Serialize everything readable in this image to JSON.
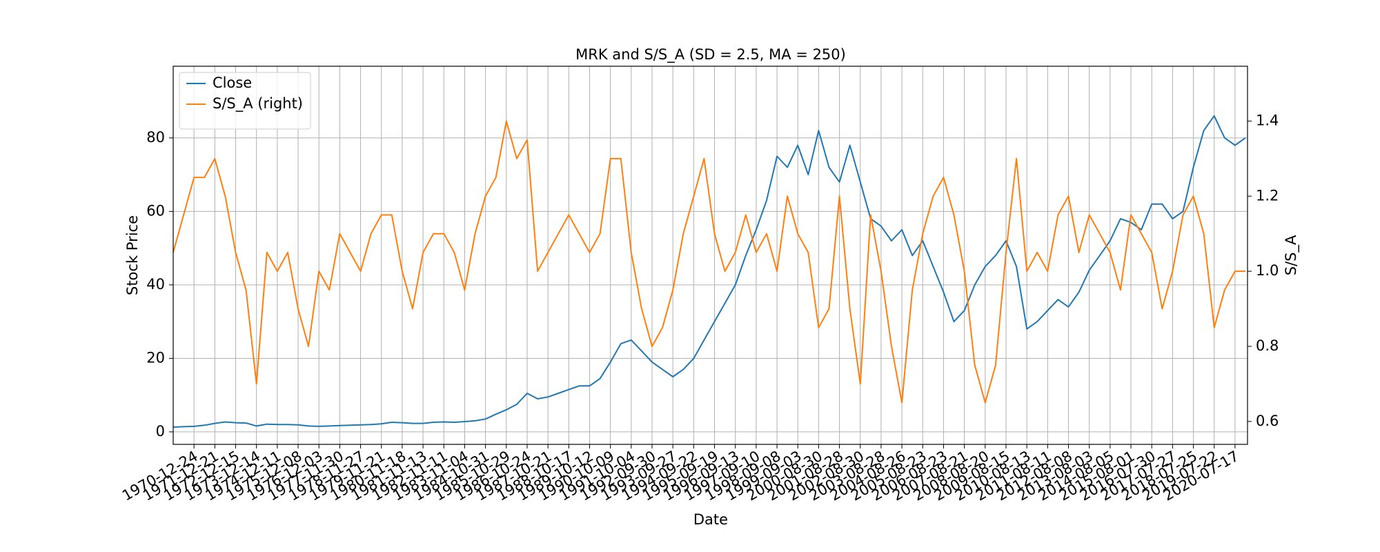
{
  "chart_data": {
    "type": "line",
    "title": "MRK and S/S_A (SD = 2.5, MA = 250)",
    "x_label": "Date",
    "y_label": "Stock Price",
    "y2_label": "S/S_A",
    "grid": true,
    "legend": "upper left",
    "xlim": [
      0,
      12900
    ],
    "ylim": [
      -3.4,
      99.5
    ],
    "y2lim": [
      0.539,
      1.546
    ],
    "yticks": [
      0,
      20,
      40,
      60,
      80
    ],
    "y2ticks": [
      0.6,
      0.8,
      {
        "value": 1.0,
        "label": "1.0"
      },
      1.2,
      1.4
    ],
    "xticks": [
      {
        "value": 250,
        "label": "1970-12-24"
      },
      {
        "value": 500,
        "label": "1971-12-21"
      },
      {
        "value": 750,
        "label": "1972-12-15"
      },
      {
        "value": 1000,
        "label": "1973-12-14"
      },
      {
        "value": 1250,
        "label": "1974-12-11"
      },
      {
        "value": 1500,
        "label": "1975-12-08"
      },
      {
        "value": 1750,
        "label": "1976-12-03"
      },
      {
        "value": 2000,
        "label": "1977-11-30"
      },
      {
        "value": 2250,
        "label": "1978-11-27"
      },
      {
        "value": 2500,
        "label": "1979-11-21"
      },
      {
        "value": 2750,
        "label": "1980-11-18"
      },
      {
        "value": 3000,
        "label": "1981-11-13"
      },
      {
        "value": 3250,
        "label": "1982-11-11"
      },
      {
        "value": 3500,
        "label": "1983-11-04"
      },
      {
        "value": 3750,
        "label": "1984-10-31"
      },
      {
        "value": 4000,
        "label": "1985-10-29"
      },
      {
        "value": 4250,
        "label": "1986-10-24"
      },
      {
        "value": 4500,
        "label": "1987-10-21"
      },
      {
        "value": 4750,
        "label": "1988-10-17"
      },
      {
        "value": 5000,
        "label": "1989-10-12"
      },
      {
        "value": 5250,
        "label": "1990-10-09"
      },
      {
        "value": 5500,
        "label": "1991-10-04"
      },
      {
        "value": 5750,
        "label": "1992-09-30"
      },
      {
        "value": 6000,
        "label": "1993-09-27"
      },
      {
        "value": 6250,
        "label": "1994-09-22"
      },
      {
        "value": 6500,
        "label": "1995-09-19"
      },
      {
        "value": 6750,
        "label": "1996-09-13"
      },
      {
        "value": 7000,
        "label": "1997-09-10"
      },
      {
        "value": 7250,
        "label": "1998-09-08"
      },
      {
        "value": 7500,
        "label": "1999-09-03"
      },
      {
        "value": 7750,
        "label": "2000-08-30"
      },
      {
        "value": 8000,
        "label": "2001-08-28"
      },
      {
        "value": 8250,
        "label": "2002-08-30"
      },
      {
        "value": 8500,
        "label": "2003-08-28"
      },
      {
        "value": 8750,
        "label": "2004-08-26"
      },
      {
        "value": 9000,
        "label": "2005-08-23"
      },
      {
        "value": 9250,
        "label": "2006-08-23"
      },
      {
        "value": 9500,
        "label": "2007-08-21"
      },
      {
        "value": 9750,
        "label": "2008-08-20"
      },
      {
        "value": 10000,
        "label": "2009-08-15"
      },
      {
        "value": 10250,
        "label": "2010-08-13"
      },
      {
        "value": 10500,
        "label": "2011-08-11"
      },
      {
        "value": 10750,
        "label": "2012-08-08"
      },
      {
        "value": 11000,
        "label": "2013-08-03"
      },
      {
        "value": 11250,
        "label": "2014-08-05"
      },
      {
        "value": 11500,
        "label": "2015-08-01"
      },
      {
        "value": 11750,
        "label": "2016-07-30"
      },
      {
        "value": 12000,
        "label": "2017-07-27"
      },
      {
        "value": 12250,
        "label": "2018-07-25"
      },
      {
        "value": 12500,
        "label": "2019-07-22"
      },
      {
        "value": 12750,
        "label": "2020-07-17"
      }
    ],
    "x": [
      0,
      125,
      250,
      375,
      500,
      625,
      750,
      875,
      1000,
      1125,
      1250,
      1375,
      1500,
      1625,
      1750,
      1875,
      2000,
      2125,
      2250,
      2375,
      2500,
      2625,
      2750,
      2875,
      3000,
      3125,
      3250,
      3375,
      3500,
      3625,
      3750,
      3875,
      4000,
      4125,
      4250,
      4375,
      4500,
      4625,
      4750,
      4875,
      5000,
      5125,
      5250,
      5375,
      5500,
      5625,
      5750,
      5875,
      6000,
      6125,
      6250,
      6375,
      6500,
      6625,
      6750,
      6875,
      7000,
      7125,
      7250,
      7375,
      7500,
      7625,
      7750,
      7875,
      8000,
      8125,
      8250,
      8375,
      8500,
      8625,
      8750,
      8875,
      9000,
      9125,
      9250,
      9375,
      9500,
      9625,
      9750,
      9875,
      10000,
      10125,
      10250,
      10375,
      10500,
      10625,
      10750,
      10875,
      11000,
      11125,
      11250,
      11375,
      11500,
      11625,
      11750,
      11875,
      12000,
      12125,
      12250,
      12375,
      12500,
      12625,
      12750,
      12875
    ],
    "series": [
      {
        "name": "Close",
        "color": "#1f77b4",
        "axis": "y",
        "values": [
          1.3,
          1.4,
          1.5,
          1.8,
          2.3,
          2.7,
          2.5,
          2.4,
          1.6,
          2.1,
          2.0,
          2.0,
          1.9,
          1.6,
          1.5,
          1.6,
          1.7,
          1.8,
          1.9,
          2.0,
          2.2,
          2.6,
          2.5,
          2.3,
          2.3,
          2.6,
          2.7,
          2.6,
          2.8,
          3.0,
          3.5,
          4.8,
          6.0,
          7.5,
          10.5,
          9.0,
          9.5,
          10.5,
          11.5,
          12.5,
          12.5,
          14.5,
          19,
          24,
          25,
          22,
          19,
          17,
          15,
          17,
          20,
          25,
          30,
          35,
          40,
          48,
          55,
          63,
          75,
          72,
          78,
          70,
          82,
          72,
          68,
          78,
          68,
          58,
          56,
          52,
          55,
          48,
          52,
          45,
          38,
          30,
          33,
          40,
          45,
          48,
          52,
          45,
          28,
          30,
          33,
          36,
          34,
          38,
          44,
          48,
          52,
          58,
          57,
          55,
          62,
          62,
          58,
          60,
          72,
          82,
          86,
          80,
          78,
          80
        ]
      },
      {
        "name": "S/S_A (right)",
        "color": "#ff7f0e",
        "axis": "y2",
        "values": [
          1.05,
          1.15,
          1.25,
          1.25,
          1.3,
          1.2,
          1.05,
          0.95,
          0.7,
          1.05,
          1.0,
          1.05,
          0.9,
          0.8,
          1.0,
          0.95,
          1.1,
          1.05,
          1.0,
          1.1,
          1.15,
          1.15,
          1.0,
          0.9,
          1.05,
          1.1,
          1.1,
          1.05,
          0.95,
          1.1,
          1.2,
          1.25,
          1.4,
          1.3,
          1.35,
          1.0,
          1.05,
          1.1,
          1.15,
          1.1,
          1.05,
          1.1,
          1.3,
          1.3,
          1.05,
          0.9,
          0.8,
          0.85,
          0.95,
          1.1,
          1.2,
          1.3,
          1.1,
          1.0,
          1.05,
          1.15,
          1.05,
          1.1,
          1.0,
          1.2,
          1.1,
          1.05,
          0.85,
          0.9,
          1.2,
          0.9,
          0.7,
          1.15,
          1.0,
          0.8,
          0.65,
          0.95,
          1.1,
          1.2,
          1.25,
          1.15,
          1.0,
          0.75,
          0.65,
          0.75,
          1.05,
          1.3,
          1.0,
          1.05,
          1.0,
          1.15,
          1.2,
          1.05,
          1.15,
          1.1,
          1.05,
          0.95,
          1.15,
          1.1,
          1.05,
          0.9,
          1.0,
          1.15,
          1.2,
          1.1,
          0.85,
          0.95,
          1.0,
          1.0
        ]
      }
    ]
  }
}
